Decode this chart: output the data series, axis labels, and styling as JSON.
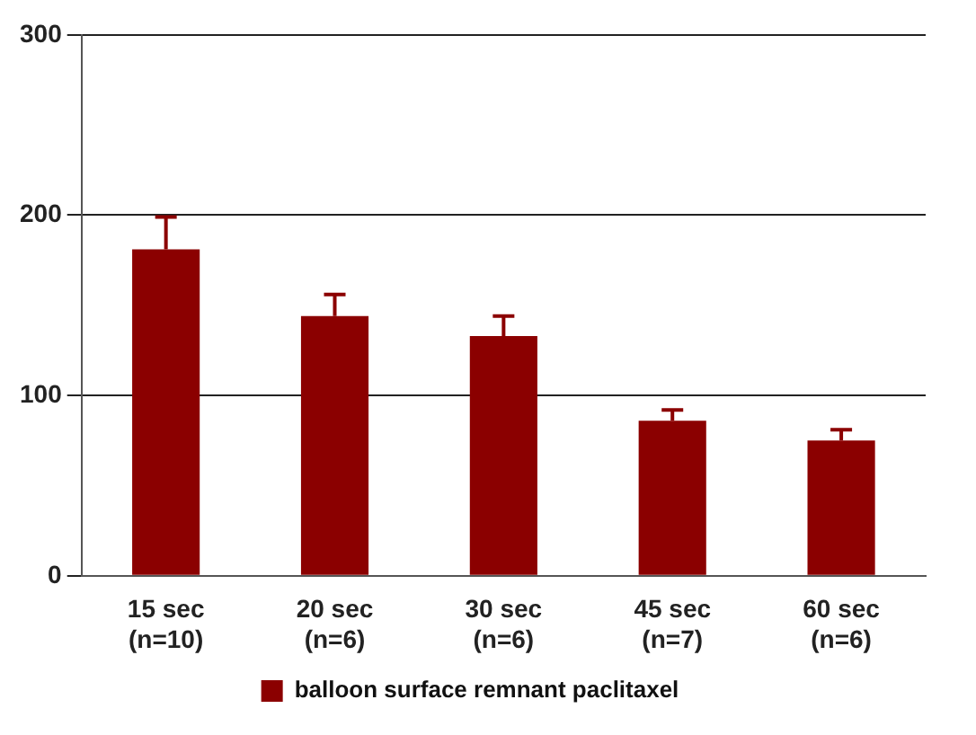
{
  "chart_data": {
    "type": "bar",
    "categories": [
      "15 sec\n(n=10)",
      "20 sec\n(n=6)",
      "30 sec\n(n=6)",
      "45 sec\n(n=7)",
      "60 sec\n(n=6)"
    ],
    "series": [
      {
        "name": "balloon surface remnant paclitaxel",
        "color": "#8b0000",
        "values": [
          181,
          144,
          133,
          86,
          75
        ],
        "errors": [
          [
            181,
            199
          ],
          [
            144,
            156
          ],
          [
            133,
            144
          ],
          [
            86,
            92
          ],
          [
            75,
            81
          ]
        ]
      }
    ],
    "ylim": [
      0,
      300
    ],
    "yticks": [
      0,
      100,
      200,
      300
    ],
    "grid": "y",
    "legend": "bottom"
  }
}
